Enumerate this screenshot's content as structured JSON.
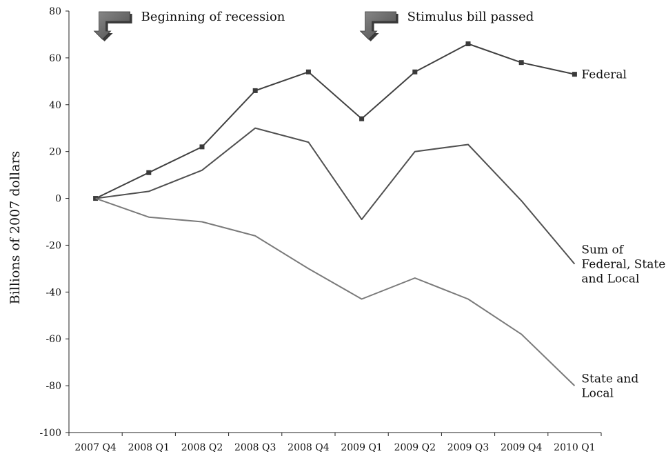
{
  "chart_data": {
    "type": "line",
    "title": "",
    "xlabel": "",
    "ylabel": "Billions of 2007 dollars",
    "ylim": [
      -100,
      80
    ],
    "yticks": [
      80,
      60,
      40,
      20,
      0,
      -20,
      -40,
      -60,
      -80,
      -100
    ],
    "grid": false,
    "categories": [
      "2007 Q4",
      "2008 Q1",
      "2008 Q2",
      "2008 Q3",
      "2008 Q4",
      "2009 Q1",
      "2009 Q2",
      "2009 Q3",
      "2009 Q4",
      "2010 Q1"
    ],
    "series": [
      {
        "name": "Federal",
        "label_lines": [
          "Federal"
        ],
        "values": [
          0,
          11,
          22,
          46,
          54,
          34,
          54,
          66,
          58,
          53
        ],
        "color": "#404040",
        "markers": true
      },
      {
        "name": "Sum of Federal, State, and Local",
        "label_lines": [
          "Sum of",
          "Federal, State,",
          "and Local"
        ],
        "values": [
          0,
          3,
          12,
          30,
          24,
          -9,
          20,
          23,
          -1,
          -28
        ],
        "color": "#505050",
        "markers": false
      },
      {
        "name": "State and Local",
        "label_lines": [
          "State and",
          "Local"
        ],
        "values": [
          0,
          -8,
          -10,
          -16,
          -30,
          -43,
          -34,
          -43,
          -58,
          -80
        ],
        "color": "#7a7a7a",
        "markers": false
      }
    ],
    "annotations": [
      {
        "text": "Beginning of recession",
        "category": "2007 Q4"
      },
      {
        "text": "Stimulus bill passed",
        "category": "2009 Q1"
      }
    ]
  }
}
